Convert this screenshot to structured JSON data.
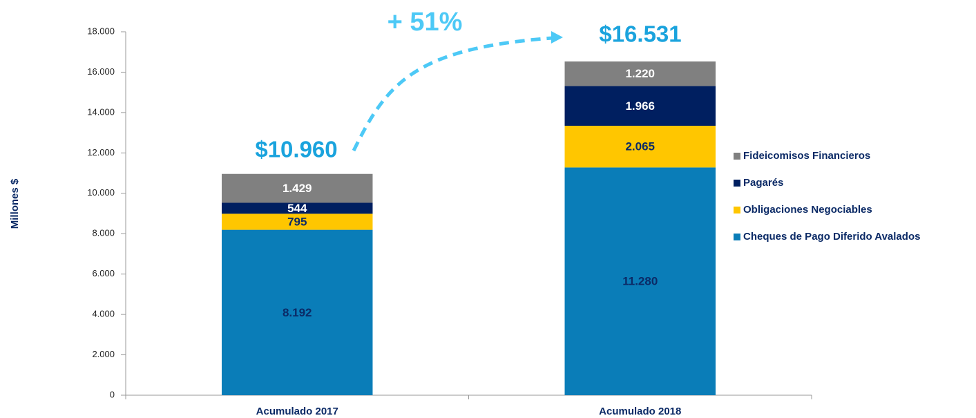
{
  "chart_data": {
    "type": "stacked_bar",
    "ylabel": "Millones $",
    "categories": [
      "Acumulado 2017",
      "Acumulado 2018"
    ],
    "series": [
      {
        "name": "Cheques de Pago Diferido Avalados",
        "color": "#0a7db8",
        "label_color": "#0b2a66",
        "values": [
          8192,
          11280
        ],
        "value_labels": [
          "8.192",
          "11.280"
        ]
      },
      {
        "name": "Obligaciones Negociables",
        "color": "#ffc600",
        "label_color": "#0b2a66",
        "values": [
          795,
          2065
        ],
        "value_labels": [
          "795",
          "2.065"
        ]
      },
      {
        "name": "Pagarés",
        "color": "#001f60",
        "label_color": "#ffffff",
        "values": [
          544,
          1966
        ],
        "value_labels": [
          "544",
          "1.966"
        ]
      },
      {
        "name": "Fideicomisos Financieros",
        "color": "#808080",
        "label_color": "#ffffff",
        "values": [
          1429,
          1220
        ],
        "value_labels": [
          "1.429",
          "1.220"
        ]
      }
    ],
    "ylim": [
      0,
      18000
    ],
    "yticks": [
      0,
      {
        "value": 2000,
        "label": "2.000"
      },
      {
        "value": 4000,
        "label": "4.000"
      },
      {
        "value": 6000,
        "label": "6.000"
      },
      {
        "value": 8000,
        "label": "8.000"
      },
      {
        "value": 10000,
        "label": "10.000"
      },
      {
        "value": 12000,
        "label": "12.000"
      },
      {
        "value": 14000,
        "label": "14.000"
      },
      {
        "value": 16000,
        "label": "16.000"
      },
      {
        "value": 18000,
        "label": "18.000"
      }
    ],
    "annotations": [
      "$10.960",
      "$16.531",
      "+ 51%"
    ],
    "legend": "right"
  }
}
